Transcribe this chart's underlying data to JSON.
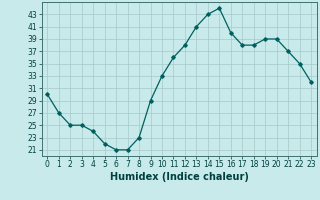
{
  "x": [
    0,
    1,
    2,
    3,
    4,
    5,
    6,
    7,
    8,
    9,
    10,
    11,
    12,
    13,
    14,
    15,
    16,
    17,
    18,
    19,
    20,
    21,
    22,
    23
  ],
  "y": [
    30,
    27,
    25,
    25,
    24,
    22,
    21,
    21,
    23,
    29,
    33,
    36,
    38,
    41,
    43,
    44,
    40,
    38,
    38,
    39,
    39,
    37,
    35,
    32
  ],
  "line_color": "#006060",
  "marker": "D",
  "marker_size": 1.8,
  "line_width": 0.9,
  "xlabel": "Humidex (Indice chaleur)",
  "background_color": "#c8eaea",
  "grid_color": "#a8c8c8",
  "ylim": [
    20,
    45
  ],
  "xlim": [
    -0.5,
    23.5
  ],
  "yticks": [
    21,
    23,
    25,
    27,
    29,
    31,
    33,
    35,
    37,
    39,
    41,
    43
  ],
  "xticks": [
    0,
    1,
    2,
    3,
    4,
    5,
    6,
    7,
    8,
    9,
    10,
    11,
    12,
    13,
    14,
    15,
    16,
    17,
    18,
    19,
    20,
    21,
    22,
    23
  ],
  "tick_fontsize": 5.5,
  "xlabel_fontsize": 7.0
}
